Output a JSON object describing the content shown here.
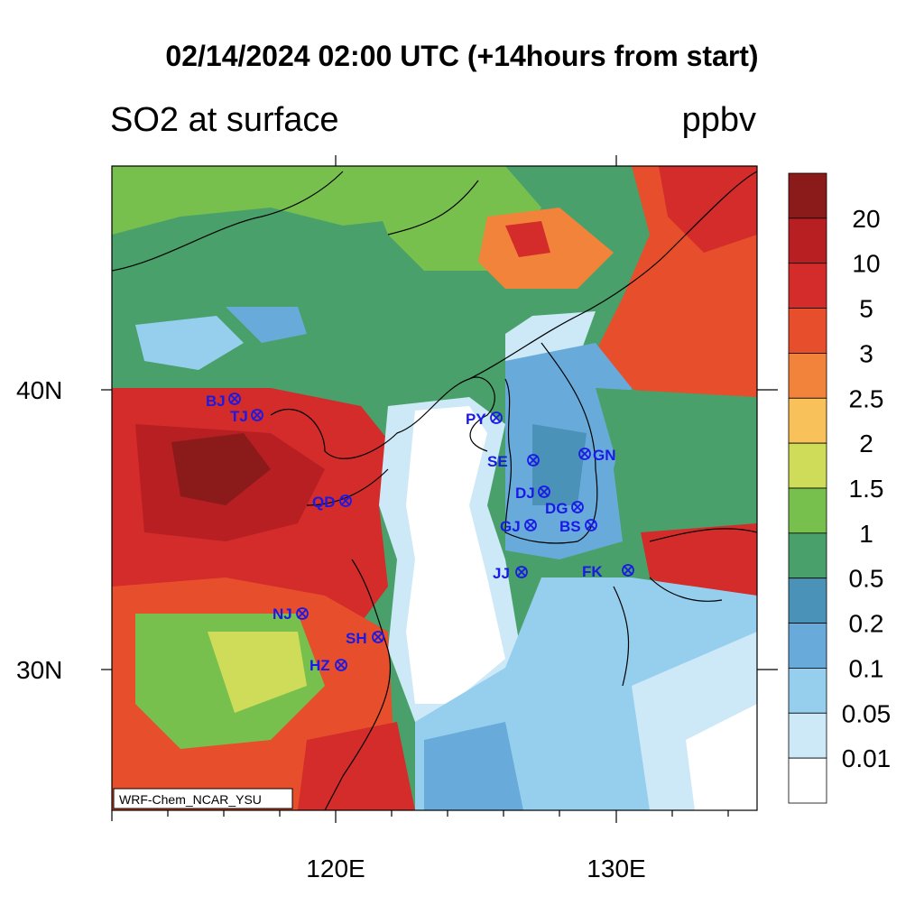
{
  "title": "02/14/2024 02:00 UTC (+14hours from start)",
  "subtitle_left": "SO2 at surface",
  "subtitle_right": "ppbv",
  "model_label": "WRF-Chem_NCAR_YSU",
  "axes": {
    "x_labels": [
      "120E",
      "130E"
    ],
    "y_labels": [
      "40N",
      "30N"
    ]
  },
  "colorbar": {
    "levels": [
      "20",
      "10",
      "5",
      "3",
      "2.5",
      "2",
      "1.5",
      "1",
      "0.5",
      "0.2",
      "0.1",
      "0.05",
      "0.01"
    ],
    "colors": [
      "#8b1a1a",
      "#b81f22",
      "#d42b2b",
      "#e64e2c",
      "#f2833a",
      "#f9c15a",
      "#cfdc5a",
      "#77c04e",
      "#49a06a",
      "#4a92b8",
      "#68abda",
      "#96cfee",
      "#cde9f8",
      "#ffffff"
    ]
  },
  "stations": [
    {
      "code": "BJ"
    },
    {
      "code": "TJ"
    },
    {
      "code": "QD"
    },
    {
      "code": "NJ"
    },
    {
      "code": "SH"
    },
    {
      "code": "HZ"
    },
    {
      "code": "PY"
    },
    {
      "code": "SE"
    },
    {
      "code": "GN"
    },
    {
      "code": "DJ"
    },
    {
      "code": "DG"
    },
    {
      "code": "GJ"
    },
    {
      "code": "BS"
    },
    {
      "code": "JJ"
    },
    {
      "code": "FK"
    }
  ]
}
